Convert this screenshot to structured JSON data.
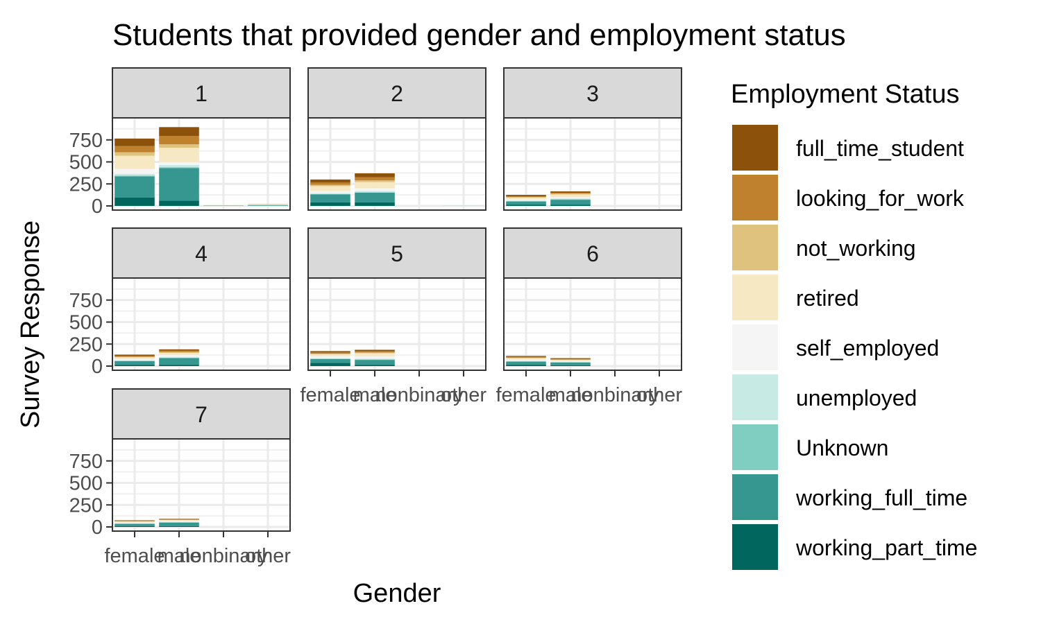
{
  "chart_data": {
    "type": "bar",
    "stacked": true,
    "faceted": true,
    "title": "Students that provided gender and employment status",
    "xlabel": "Gender",
    "ylabel": "Survey Response",
    "ylim": [
      0,
      1000
    ],
    "y_ticks": [
      0,
      250,
      500,
      750
    ],
    "y_tick_labels": [
      "0",
      "250",
      "500",
      "750"
    ],
    "categories": [
      "female",
      "male",
      "nonbinary",
      "other"
    ],
    "grid": true,
    "legend": {
      "title": "Employment Status",
      "placement": "right",
      "entries": [
        {
          "name": "full_time_student",
          "color": "#8C510A"
        },
        {
          "name": "looking_for_work",
          "color": "#BF812D"
        },
        {
          "name": "not_working",
          "color": "#DFC27D"
        },
        {
          "name": "retired",
          "color": "#F6E8C3"
        },
        {
          "name": "self_employed",
          "color": "#F5F5F5"
        },
        {
          "name": "unemployed",
          "color": "#C7EAE5"
        },
        {
          "name": "Unknown",
          "color": "#80CDC1"
        },
        {
          "name": "working_full_time",
          "color": "#35978F"
        },
        {
          "name": "working_part_time",
          "color": "#01665E"
        }
      ]
    },
    "stack_order_bottom_to_top": [
      "working_part_time",
      "working_full_time",
      "Unknown",
      "unemployed",
      "self_employed",
      "retired",
      "not_working",
      "looking_for_work",
      "full_time_student"
    ],
    "facets": [
      {
        "label": "1",
        "bars": [
          {
            "category": "female",
            "values": {
              "working_part_time": 95,
              "working_full_time": 240,
              "Unknown": 10,
              "unemployed": 20,
              "self_employed": 55,
              "retired": 150,
              "not_working": 40,
              "looking_for_work": 70,
              "full_time_student": 85
            }
          },
          {
            "category": "male",
            "values": {
              "working_part_time": 60,
              "working_full_time": 370,
              "Unknown": 10,
              "unemployed": 25,
              "self_employed": 30,
              "retired": 165,
              "not_working": 40,
              "looking_for_work": 95,
              "full_time_student": 100
            }
          },
          {
            "category": "nonbinary",
            "values": {
              "working_part_time": 1,
              "working_full_time": 2,
              "Unknown": 0,
              "unemployed": 0,
              "self_employed": 0,
              "retired": 1,
              "not_working": 0,
              "looking_for_work": 0,
              "full_time_student": 1
            }
          },
          {
            "category": "other",
            "values": {
              "working_part_time": 2,
              "working_full_time": 5,
              "Unknown": 1,
              "unemployed": 1,
              "self_employed": 2,
              "retired": 3,
              "not_working": 1,
              "looking_for_work": 1,
              "full_time_student": 2
            }
          }
        ]
      },
      {
        "label": "2",
        "bars": [
          {
            "category": "female",
            "values": {
              "working_part_time": 40,
              "working_full_time": 90,
              "Unknown": 5,
              "unemployed": 10,
              "self_employed": 25,
              "retired": 55,
              "not_working": 15,
              "looking_for_work": 25,
              "full_time_student": 35
            }
          },
          {
            "category": "male",
            "values": {
              "working_part_time": 40,
              "working_full_time": 110,
              "Unknown": 5,
              "unemployed": 15,
              "self_employed": 30,
              "retired": 70,
              "not_working": 20,
              "looking_for_work": 35,
              "full_time_student": 45
            }
          },
          {
            "category": "nonbinary",
            "values": {
              "working_part_time": 0,
              "working_full_time": 0,
              "Unknown": 0,
              "unemployed": 0,
              "self_employed": 0,
              "retired": 0,
              "not_working": 0,
              "looking_for_work": 0,
              "full_time_student": 0
            }
          },
          {
            "category": "other",
            "values": {
              "working_part_time": 0,
              "working_full_time": 1,
              "Unknown": 0,
              "unemployed": 0,
              "self_employed": 0,
              "retired": 1,
              "not_working": 0,
              "looking_for_work": 0,
              "full_time_student": 0
            }
          }
        ]
      },
      {
        "label": "3",
        "bars": [
          {
            "category": "female",
            "values": {
              "working_part_time": 15,
              "working_full_time": 35,
              "Unknown": 5,
              "unemployed": 5,
              "self_employed": 15,
              "retired": 20,
              "not_working": 5,
              "looking_for_work": 10,
              "full_time_student": 15
            }
          },
          {
            "category": "male",
            "values": {
              "working_part_time": 15,
              "working_full_time": 55,
              "Unknown": 5,
              "unemployed": 10,
              "self_employed": 15,
              "retired": 30,
              "not_working": 10,
              "looking_for_work": 10,
              "full_time_student": 15
            }
          },
          {
            "category": "nonbinary",
            "values": {
              "working_part_time": 0,
              "working_full_time": 0,
              "Unknown": 0,
              "unemployed": 0,
              "self_employed": 0,
              "retired": 0,
              "not_working": 0,
              "looking_for_work": 0,
              "full_time_student": 0
            }
          },
          {
            "category": "other",
            "values": {
              "working_part_time": 0,
              "working_full_time": 0,
              "Unknown": 0,
              "unemployed": 0,
              "self_employed": 0,
              "retired": 0,
              "not_working": 0,
              "looking_for_work": 0,
              "full_time_student": 0
            }
          }
        ]
      },
      {
        "label": "4",
        "bars": [
          {
            "category": "female",
            "values": {
              "working_part_time": 15,
              "working_full_time": 40,
              "Unknown": 5,
              "unemployed": 5,
              "self_employed": 15,
              "retired": 20,
              "not_working": 5,
              "looking_for_work": 10,
              "full_time_student": 15
            }
          },
          {
            "category": "male",
            "values": {
              "working_part_time": 15,
              "working_full_time": 75,
              "Unknown": 5,
              "unemployed": 10,
              "self_employed": 20,
              "retired": 25,
              "not_working": 10,
              "looking_for_work": 15,
              "full_time_student": 15
            }
          },
          {
            "category": "nonbinary",
            "values": {
              "working_part_time": 0,
              "working_full_time": 0,
              "Unknown": 0,
              "unemployed": 0,
              "self_employed": 0,
              "retired": 0,
              "not_working": 0,
              "looking_for_work": 0,
              "full_time_student": 0
            }
          },
          {
            "category": "other",
            "values": {
              "working_part_time": 0,
              "working_full_time": 0,
              "Unknown": 0,
              "unemployed": 0,
              "self_employed": 0,
              "retired": 0,
              "not_working": 0,
              "looking_for_work": 0,
              "full_time_student": 0
            }
          }
        ]
      },
      {
        "label": "5",
        "bars": [
          {
            "category": "female",
            "values": {
              "working_part_time": 35,
              "working_full_time": 45,
              "Unknown": 5,
              "unemployed": 5,
              "self_employed": 20,
              "retired": 25,
              "not_working": 5,
              "looking_for_work": 15,
              "full_time_student": 15
            }
          },
          {
            "category": "male",
            "values": {
              "working_part_time": 15,
              "working_full_time": 55,
              "Unknown": 5,
              "unemployed": 10,
              "self_employed": 25,
              "retired": 35,
              "not_working": 10,
              "looking_for_work": 15,
              "full_time_student": 15
            }
          },
          {
            "category": "nonbinary",
            "values": {
              "working_part_time": 0,
              "working_full_time": 0,
              "Unknown": 0,
              "unemployed": 0,
              "self_employed": 0,
              "retired": 0,
              "not_working": 0,
              "looking_for_work": 0,
              "full_time_student": 0
            }
          },
          {
            "category": "other",
            "values": {
              "working_part_time": 0,
              "working_full_time": 0,
              "Unknown": 0,
              "unemployed": 0,
              "self_employed": 0,
              "retired": 0,
              "not_working": 0,
              "looking_for_work": 0,
              "full_time_student": 0
            }
          }
        ]
      },
      {
        "label": "6",
        "bars": [
          {
            "category": "female",
            "values": {
              "working_part_time": 15,
              "working_full_time": 35,
              "Unknown": 5,
              "unemployed": 5,
              "self_employed": 15,
              "retired": 15,
              "not_working": 5,
              "looking_for_work": 10,
              "full_time_student": 10
            }
          },
          {
            "category": "male",
            "values": {
              "working_part_time": 10,
              "working_full_time": 30,
              "Unknown": 5,
              "unemployed": 5,
              "self_employed": 10,
              "retired": 10,
              "not_working": 5,
              "looking_for_work": 5,
              "full_time_student": 10
            }
          },
          {
            "category": "nonbinary",
            "values": {
              "working_part_time": 0,
              "working_full_time": 0,
              "Unknown": 0,
              "unemployed": 0,
              "self_employed": 0,
              "retired": 0,
              "not_working": 0,
              "looking_for_work": 0,
              "full_time_student": 0
            }
          },
          {
            "category": "other",
            "values": {
              "working_part_time": 0,
              "working_full_time": 0,
              "Unknown": 0,
              "unemployed": 0,
              "self_employed": 0,
              "retired": 0,
              "not_working": 0,
              "looking_for_work": 0,
              "full_time_student": 0
            }
          }
        ]
      },
      {
        "label": "7",
        "bars": [
          {
            "category": "female",
            "values": {
              "working_part_time": 10,
              "working_full_time": 25,
              "Unknown": 3,
              "unemployed": 3,
              "self_employed": 10,
              "retired": 10,
              "not_working": 3,
              "looking_for_work": 5,
              "full_time_student": 6
            }
          },
          {
            "category": "male",
            "values": {
              "working_part_time": 10,
              "working_full_time": 40,
              "Unknown": 3,
              "unemployed": 5,
              "self_employed": 10,
              "retired": 10,
              "not_working": 3,
              "looking_for_work": 5,
              "full_time_student": 6
            }
          },
          {
            "category": "nonbinary",
            "values": {
              "working_part_time": 0,
              "working_full_time": 0,
              "Unknown": 0,
              "unemployed": 0,
              "self_employed": 0,
              "retired": 0,
              "not_working": 0,
              "looking_for_work": 0,
              "full_time_student": 0
            }
          },
          {
            "category": "other",
            "values": {
              "working_part_time": 0,
              "working_full_time": 0,
              "Unknown": 0,
              "unemployed": 0,
              "self_employed": 0,
              "retired": 0,
              "not_working": 0,
              "looking_for_work": 0,
              "full_time_student": 0
            }
          }
        ]
      }
    ]
  }
}
